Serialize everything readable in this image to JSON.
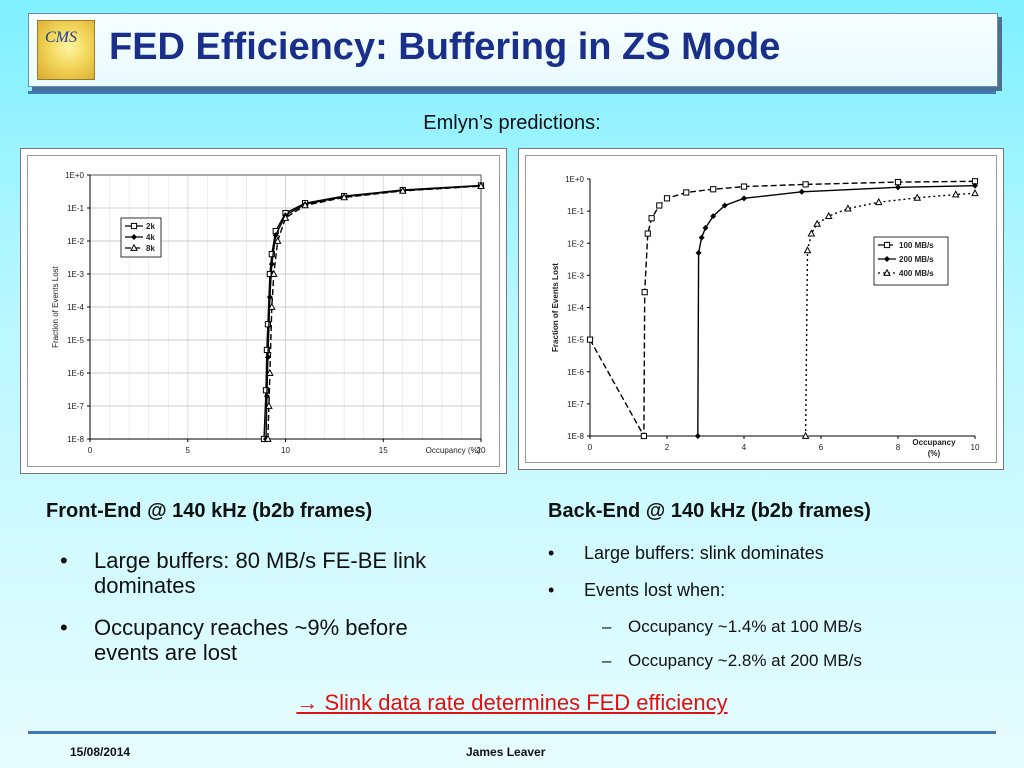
{
  "slide": {
    "title": "FED Efficiency: Buffering in ZS Mode",
    "logo_text": "CMS",
    "subtitle": "Emlyn’s predictions:",
    "footer_date": "15/08/2014",
    "footer_author": "James Leaver",
    "conclusion": "→ Slink data rate determines FED efficiency"
  },
  "left": {
    "heading": "Front-End @ 140 kHz (b2b frames)",
    "bullets": [
      "Large buffers: 80 MB/s FE-BE link dominates",
      "Occupancy reaches ~9% before events are lost"
    ]
  },
  "right": {
    "heading": "Back-End @ 140 kHz (b2b frames)",
    "bullets": [
      "Large buffers: slink dominates",
      "Events lost when:"
    ],
    "subbullets": [
      "Occupancy ~1.4% at 100 MB/s",
      "Occupancy ~2.8% at 200 MB/s"
    ]
  },
  "chart_data": [
    {
      "type": "line",
      "ylabel": "Fraction of Events Lost",
      "xlabel": "Occupancy (%)",
      "xlim": [
        0,
        20
      ],
      "ylim": [
        1e-08,
        1
      ],
      "y_scale": "log",
      "x_ticks": [
        0,
        5,
        10,
        15,
        20
      ],
      "y_tick_labels": [
        "1E-8",
        "1E-7",
        "1E-6",
        "1E-5",
        "1E-4",
        "1E-3",
        "1E-2",
        "1E-1",
        "1E+0"
      ],
      "grid": true,
      "legend_position": "left-middle",
      "series": [
        {
          "name": "2k",
          "marker": "square",
          "dash": "solid",
          "x": [
            8.9,
            9.0,
            9.05,
            9.1,
            9.2,
            9.3,
            9.5,
            10.0,
            11.0,
            13.0,
            16.0,
            20.0
          ],
          "y": [
            1e-08,
            3e-07,
            5e-06,
            3e-05,
            0.001,
            0.004,
            0.02,
            0.07,
            0.14,
            0.23,
            0.35,
            0.48
          ]
        },
        {
          "name": "4k",
          "marker": "diamond",
          "dash": "solid",
          "x": [
            9.0,
            9.05,
            9.1,
            9.2,
            9.3,
            9.5,
            10.0,
            11.0,
            13.0,
            16.0,
            20.0
          ],
          "y": [
            1e-08,
            2e-07,
            3e-06,
            0.0002,
            0.002,
            0.015,
            0.06,
            0.13,
            0.22,
            0.34,
            0.47
          ]
        },
        {
          "name": "8k",
          "marker": "triangle",
          "dash": "dashed",
          "x": [
            9.1,
            9.15,
            9.2,
            9.3,
            9.4,
            9.6,
            10.0,
            11.0,
            13.0,
            16.0,
            20.0
          ],
          "y": [
            1e-08,
            1e-07,
            1e-06,
            0.0001,
            0.001,
            0.01,
            0.05,
            0.12,
            0.21,
            0.33,
            0.46
          ]
        }
      ]
    },
    {
      "type": "line",
      "ylabel": "Fraction of Events Lost",
      "xlabel": "Occupancy (%)",
      "xlim": [
        0,
        10
      ],
      "ylim": [
        1e-08,
        1
      ],
      "y_scale": "log",
      "x_ticks": [
        0,
        2,
        4,
        6,
        8,
        10
      ],
      "y_tick_labels": [
        "1E-8",
        "1E-7",
        "1E-6",
        "1E-5",
        "1E-4",
        "1E-3",
        "1E-2",
        "1E-1",
        "1E+0"
      ],
      "grid": false,
      "legend_position": "center-right",
      "series": [
        {
          "name": "100 MB/s",
          "marker": "square",
          "dash": "dashed",
          "x": [
            0.0,
            1.4,
            1.42,
            1.5,
            1.6,
            1.8,
            2.0,
            2.5,
            3.2,
            4.0,
            5.6,
            8.0,
            10.0
          ],
          "y": [
            1e-05,
            1e-08,
            0.0003,
            0.02,
            0.06,
            0.15,
            0.25,
            0.38,
            0.48,
            0.58,
            0.68,
            0.8,
            0.85
          ]
        },
        {
          "name": "200 MB/s",
          "marker": "diamond",
          "dash": "solid",
          "x": [
            2.8,
            2.82,
            2.9,
            3.0,
            3.2,
            3.5,
            4.0,
            5.5,
            8.0,
            10.0
          ],
          "y": [
            1e-08,
            0.005,
            0.015,
            0.03,
            0.07,
            0.15,
            0.25,
            0.4,
            0.55,
            0.62
          ]
        },
        {
          "name": "400 MB/s",
          "marker": "triangle",
          "dash": "dotted",
          "x": [
            5.6,
            5.65,
            5.75,
            5.9,
            6.2,
            6.7,
            7.5,
            8.5,
            9.5,
            10.0
          ],
          "y": [
            1e-08,
            0.006,
            0.02,
            0.04,
            0.07,
            0.12,
            0.19,
            0.26,
            0.33,
            0.36
          ]
        }
      ]
    }
  ]
}
